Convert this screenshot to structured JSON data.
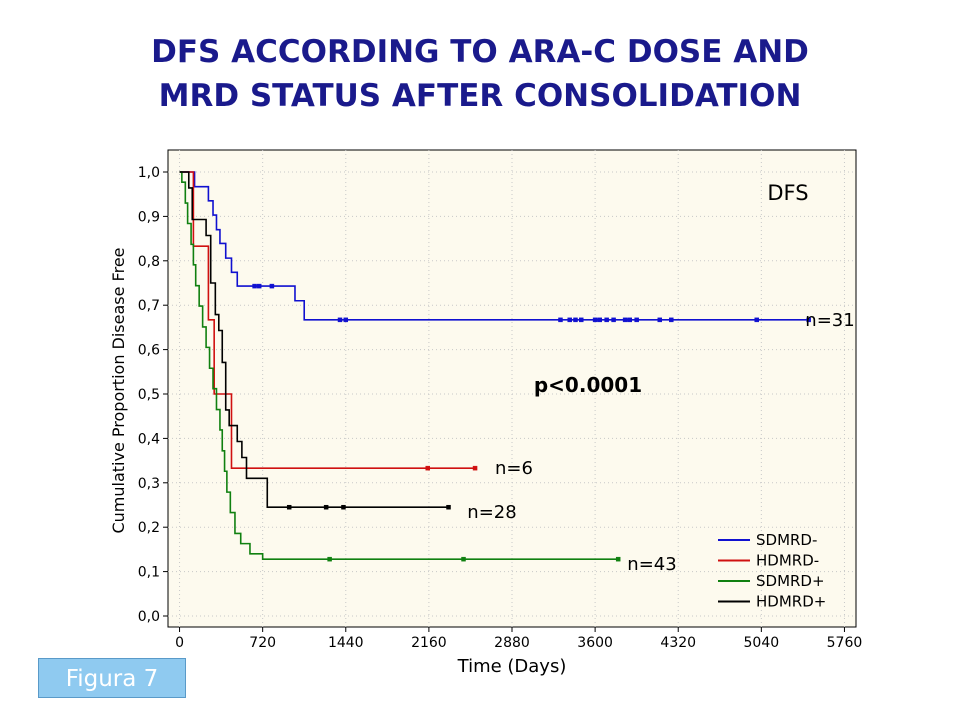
{
  "slide": {
    "title_line1": "DFS ACCORDING TO ARA-C DOSE AND",
    "title_line2": "MRD STATUS AFTER CONSOLIDATION",
    "figure_label": "Figura 7"
  },
  "chart_data": {
    "type": "line",
    "subtype": "kaplan-meier-step",
    "title": "",
    "xlabel": "Time (Days)",
    "ylabel": "Cumulative Proportion Disease Free",
    "xlim": [
      -100,
      5860
    ],
    "ylim": [
      0,
      1.0
    ],
    "xticks": [
      0,
      720,
      1440,
      2160,
      2880,
      3600,
      4320,
      5040,
      5760
    ],
    "xtick_labels": [
      "0",
      "720",
      "1440",
      "2160",
      "2880",
      "3600",
      "4320",
      "5040",
      "5760"
    ],
    "yticks": [
      0,
      0.1,
      0.2,
      0.3,
      0.4,
      0.5,
      0.6,
      0.7,
      0.8,
      0.9,
      1.0
    ],
    "ytick_labels": [
      "0,0",
      "0,1",
      "0,2",
      "0,3",
      "0,4",
      "0,5",
      "0,6",
      "0,7",
      "0,8",
      "0,9",
      "1,0"
    ],
    "grid": "dotted",
    "background": "#fdfaee",
    "legend_position": "bottom-right",
    "annotations": {
      "panel_label": "DFS",
      "p_value": "p<0.0001"
    },
    "series": [
      {
        "name": "SDMRD-",
        "color": "#1010d0",
        "n_label": "n=31",
        "steps": [
          [
            0,
            1.0
          ],
          [
            130,
            0.967
          ],
          [
            250,
            0.935
          ],
          [
            290,
            0.903
          ],
          [
            320,
            0.87
          ],
          [
            350,
            0.839
          ],
          [
            400,
            0.806
          ],
          [
            450,
            0.774
          ],
          [
            500,
            0.743
          ],
          [
            1000,
            0.71
          ],
          [
            1080,
            0.667
          ],
          [
            5450,
            0.667
          ]
        ],
        "censored": [
          [
            650,
            0.743
          ],
          [
            690,
            0.743
          ],
          [
            800,
            0.743
          ],
          [
            1390,
            0.667
          ],
          [
            1440,
            0.667
          ],
          [
            3300,
            0.667
          ],
          [
            3380,
            0.667
          ],
          [
            3430,
            0.667
          ],
          [
            3480,
            0.667
          ],
          [
            3600,
            0.667
          ],
          [
            3640,
            0.667
          ],
          [
            3700,
            0.667
          ],
          [
            3760,
            0.667
          ],
          [
            3860,
            0.667
          ],
          [
            3900,
            0.667
          ],
          [
            3960,
            0.667
          ],
          [
            4160,
            0.667
          ],
          [
            4260,
            0.667
          ],
          [
            5000,
            0.667
          ],
          [
            5450,
            0.667
          ]
        ]
      },
      {
        "name": "HDMRD-",
        "color": "#d01010",
        "n_label": "n=6",
        "steps": [
          [
            0,
            1.0
          ],
          [
            120,
            0.833
          ],
          [
            250,
            0.667
          ],
          [
            300,
            0.5
          ],
          [
            450,
            0.333
          ],
          [
            2560,
            0.333
          ]
        ],
        "censored": [
          [
            2150,
            0.333
          ],
          [
            2560,
            0.333
          ]
        ]
      },
      {
        "name": "SDMRD+",
        "color": "#108010",
        "n_label": "n=43",
        "steps": [
          [
            0,
            1.0
          ],
          [
            20,
            0.977
          ],
          [
            50,
            0.93
          ],
          [
            70,
            0.884
          ],
          [
            100,
            0.837
          ],
          [
            120,
            0.791
          ],
          [
            140,
            0.744
          ],
          [
            170,
            0.698
          ],
          [
            200,
            0.651
          ],
          [
            230,
            0.605
          ],
          [
            260,
            0.558
          ],
          [
            290,
            0.512
          ],
          [
            320,
            0.465
          ],
          [
            350,
            0.419
          ],
          [
            370,
            0.372
          ],
          [
            390,
            0.326
          ],
          [
            410,
            0.279
          ],
          [
            440,
            0.233
          ],
          [
            480,
            0.186
          ],
          [
            530,
            0.163
          ],
          [
            610,
            0.14
          ],
          [
            720,
            0.128
          ],
          [
            3800,
            0.128
          ]
        ],
        "censored": [
          [
            1300,
            0.128
          ],
          [
            2460,
            0.128
          ],
          [
            3800,
            0.128
          ]
        ]
      },
      {
        "name": "HDMRD+",
        "color": "#000000",
        "n_label": "n=28",
        "steps": [
          [
            0,
            1.0
          ],
          [
            80,
            0.964
          ],
          [
            110,
            0.893
          ],
          [
            230,
            0.857
          ],
          [
            270,
            0.75
          ],
          [
            310,
            0.679
          ],
          [
            340,
            0.643
          ],
          [
            370,
            0.571
          ],
          [
            400,
            0.464
          ],
          [
            430,
            0.429
          ],
          [
            500,
            0.393
          ],
          [
            540,
            0.357
          ],
          [
            580,
            0.31
          ],
          [
            760,
            0.245
          ],
          [
            2330,
            0.245
          ]
        ],
        "censored": [
          [
            950,
            0.245
          ],
          [
            1270,
            0.245
          ],
          [
            1420,
            0.245
          ],
          [
            2330,
            0.245
          ]
        ]
      }
    ]
  }
}
